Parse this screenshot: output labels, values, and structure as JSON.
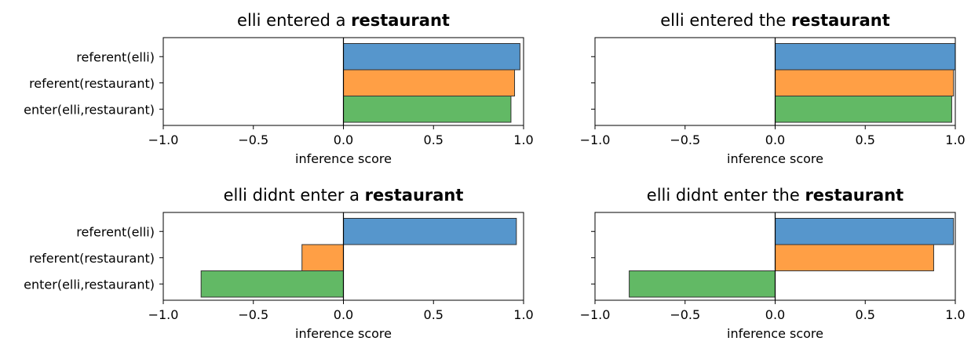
{
  "chart_data": [
    {
      "type": "bar",
      "orientation": "horizontal",
      "title": "elli entered a",
      "title_bold": "restaurant",
      "categories": [
        "referent(elli)",
        "referent(restaurant)",
        "enter(elli,restaurant)"
      ],
      "values": [
        0.98,
        0.95,
        0.93
      ],
      "xlabel": "inference score",
      "xlim": [
        -1.0,
        1.0
      ],
      "xticks": [
        "−1.0",
        "−0.5",
        "0.0",
        "0.5",
        "1.0"
      ],
      "show_category_labels": true
    },
    {
      "type": "bar",
      "orientation": "horizontal",
      "title": "elli entered the",
      "title_bold": "restaurant",
      "categories": [
        "referent(elli)",
        "referent(restaurant)",
        "enter(elli,restaurant)"
      ],
      "values": [
        1.0,
        0.99,
        0.98
      ],
      "xlabel": "inference score",
      "xlim": [
        -1.0,
        1.0
      ],
      "xticks": [
        "−1.0",
        "−0.5",
        "0.0",
        "0.5",
        "1.0"
      ],
      "show_category_labels": false
    },
    {
      "type": "bar",
      "orientation": "horizontal",
      "title": "elli didnt enter a",
      "title_bold": "restaurant",
      "categories": [
        "referent(elli)",
        "referent(restaurant)",
        "enter(elli,restaurant)"
      ],
      "values": [
        0.96,
        -0.23,
        -0.79
      ],
      "xlabel": "inference score",
      "xlim": [
        -1.0,
        1.0
      ],
      "xticks": [
        "−1.0",
        "−0.5",
        "0.0",
        "0.5",
        "1.0"
      ],
      "show_category_labels": true
    },
    {
      "type": "bar",
      "orientation": "horizontal",
      "title": "elli didnt enter the",
      "title_bold": "restaurant",
      "categories": [
        "referent(elli)",
        "referent(restaurant)",
        "enter(elli,restaurant)"
      ],
      "values": [
        0.99,
        0.88,
        -0.81
      ],
      "xlabel": "inference score",
      "xlim": [
        -1.0,
        1.0
      ],
      "xticks": [
        "−1.0",
        "−0.5",
        "0.0",
        "0.5",
        "1.0"
      ],
      "show_category_labels": false
    }
  ],
  "colors": {
    "bars": [
      "#3f88c5",
      "#ff922b",
      "#4caf50"
    ],
    "bar_edge": "#333333",
    "axis": "#000000"
  }
}
